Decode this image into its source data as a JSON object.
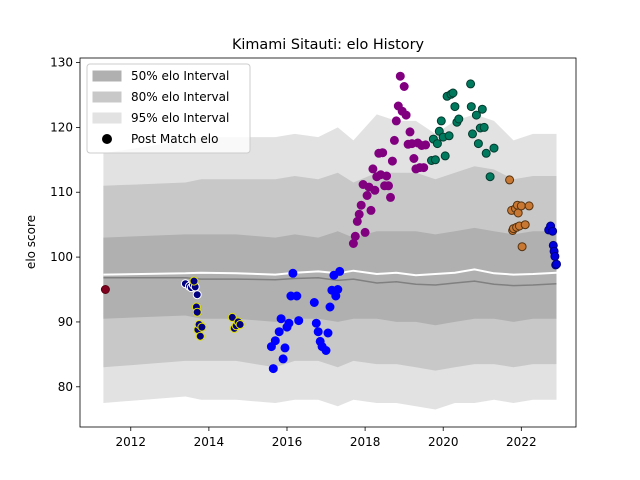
{
  "chart_data": {
    "type": "scatter",
    "title": "Kimami Sitauti: elo History",
    "xlabel": "",
    "ylabel": "elo score",
    "xlim": [
      2010.7,
      2023.4
    ],
    "ylim": [
      73.8,
      130.7
    ],
    "x_ticks": [
      2012,
      2014,
      2016,
      2018,
      2020,
      2022
    ],
    "y_ticks": [
      80,
      90,
      100,
      110,
      120,
      130
    ],
    "grid": false,
    "legend_position": "top-left",
    "legend": [
      {
        "label": "50% elo Interval",
        "kind": "band",
        "color": "#b0b0b0"
      },
      {
        "label": "80% elo Interval",
        "kind": "band",
        "color": "#c8c8c8"
      },
      {
        "label": "95% elo Interval",
        "kind": "band",
        "color": "#e2e2e2"
      },
      {
        "label": "Post Match elo",
        "kind": "marker",
        "color": "#000000"
      }
    ],
    "intervals": {
      "x": [
        2011.3,
        2013.4,
        2013.8,
        2014.7,
        2015.7,
        2016.2,
        2016.8,
        2017.3,
        2017.7,
        2018.3,
        2018.8,
        2019.3,
        2019.8,
        2020.3,
        2020.8,
        2021.3,
        2021.8,
        2022.3,
        2022.9
      ],
      "band95_upper": [
        116,
        118,
        118.5,
        118.5,
        118.5,
        119,
        118.5,
        120,
        118,
        122,
        121,
        121,
        119,
        121,
        122,
        121,
        118,
        119,
        119
      ],
      "band95_lower": [
        77.5,
        78.5,
        78,
        78,
        77.5,
        78,
        78,
        77,
        78,
        77.5,
        77.5,
        77,
        76.5,
        77.5,
        77.5,
        78,
        77.5,
        78,
        78
      ],
      "band80_upper": [
        111,
        111.5,
        112,
        112,
        112,
        112.5,
        112,
        113,
        111.5,
        113,
        113,
        113,
        112,
        113,
        114,
        113.5,
        112,
        112.5,
        112.5
      ],
      "band80_lower": [
        83,
        84,
        84,
        84,
        83,
        84,
        84,
        83,
        84,
        83.5,
        83.5,
        83,
        82.5,
        83,
        83.5,
        83.5,
        83,
        83.5,
        83.5
      ],
      "band50_upper": [
        103,
        103.5,
        103.5,
        103.5,
        103,
        103.5,
        103,
        104,
        103,
        104,
        104,
        104,
        103.5,
        104,
        104.5,
        104,
        103.5,
        104,
        104
      ],
      "band50_lower": [
        90.5,
        91,
        90.5,
        90.5,
        90,
        90.5,
        90.5,
        90,
        90.5,
        90.5,
        90,
        90,
        89.5,
        90,
        90.5,
        90.5,
        90,
        90.5,
        90.5
      ],
      "median": [
        96.8,
        96.8,
        96.6,
        96.6,
        96.5,
        96.7,
        96.8,
        96.4,
        96.6,
        96.0,
        96.2,
        95.8,
        95.7,
        96.0,
        96.3,
        95.8,
        95.6,
        95.7,
        95.9
      ],
      "mean": [
        97.3,
        97.5,
        97.6,
        97.5,
        97.3,
        97.6,
        97.8,
        97.5,
        97.9,
        97.4,
        97.6,
        97.2,
        97.4,
        97.6,
        98.1,
        97.5,
        97.3,
        97.4,
        97.6
      ]
    },
    "series": [
      {
        "color": "#800020",
        "edge": "#5a0010",
        "points": [
          [
            2011.35,
            95.0
          ]
        ]
      },
      {
        "color": "#000080",
        "edge": "#ffffff",
        "points": [
          [
            2013.4,
            95.9
          ],
          [
            2013.5,
            95.5
          ],
          [
            2013.55,
            95.3
          ],
          [
            2013.6,
            95.7
          ],
          [
            2013.65,
            95.4
          ],
          [
            2013.7,
            94.2
          ]
        ]
      },
      {
        "color": "#000080",
        "edge": "#e0e000",
        "points": [
          [
            2013.62,
            96.3
          ],
          [
            2013.68,
            92.3
          ],
          [
            2013.7,
            91.5
          ],
          [
            2013.72,
            88.8
          ],
          [
            2013.75,
            89.6
          ],
          [
            2013.78,
            87.8
          ],
          [
            2013.82,
            89.2
          ],
          [
            2014.6,
            90.7
          ],
          [
            2014.65,
            89.0
          ],
          [
            2014.7,
            89.4
          ],
          [
            2014.75,
            90.0
          ],
          [
            2014.8,
            89.6
          ]
        ]
      },
      {
        "color": "#0000ff",
        "edge": "#0000ff",
        "points": [
          [
            2015.6,
            86.2
          ],
          [
            2015.65,
            82.8
          ],
          [
            2015.7,
            87.1
          ],
          [
            2015.8,
            88.5
          ],
          [
            2015.85,
            90.5
          ],
          [
            2015.9,
            84.3
          ],
          [
            2015.95,
            86.0
          ],
          [
            2016.0,
            89.2
          ],
          [
            2016.05,
            89.8
          ],
          [
            2016.1,
            94.0
          ],
          [
            2016.15,
            97.5
          ],
          [
            2016.25,
            94.0
          ],
          [
            2016.3,
            90.2
          ],
          [
            2016.7,
            93.0
          ],
          [
            2016.75,
            89.8
          ],
          [
            2016.8,
            88.5
          ],
          [
            2016.85,
            87.0
          ],
          [
            2016.9,
            86.2
          ],
          [
            2017.0,
            85.6
          ],
          [
            2017.05,
            88.3
          ],
          [
            2017.1,
            92.3
          ],
          [
            2017.15,
            94.9
          ],
          [
            2017.2,
            97.2
          ],
          [
            2017.25,
            94.0
          ],
          [
            2017.3,
            95.0
          ],
          [
            2017.35,
            97.8
          ]
        ]
      },
      {
        "color": "#800080",
        "edge": "#800080",
        "points": [
          [
            2017.7,
            102.1
          ],
          [
            2017.75,
            103.2
          ],
          [
            2017.8,
            105.5
          ],
          [
            2017.85,
            106.6
          ],
          [
            2017.9,
            108.0
          ],
          [
            2017.95,
            111.2
          ],
          [
            2018.0,
            103.8
          ],
          [
            2018.05,
            109.5
          ],
          [
            2018.1,
            110.8
          ],
          [
            2018.15,
            107.2
          ],
          [
            2018.2,
            113.6
          ],
          [
            2018.25,
            110.3
          ],
          [
            2018.3,
            112.4
          ],
          [
            2018.35,
            116.0
          ],
          [
            2018.4,
            112.7
          ],
          [
            2018.45,
            116.1
          ],
          [
            2018.5,
            111.0
          ],
          [
            2018.55,
            112.5
          ],
          [
            2018.6,
            111.0
          ],
          [
            2018.65,
            109.2
          ],
          [
            2018.7,
            114.8
          ],
          [
            2018.75,
            118.0
          ],
          [
            2018.8,
            121.0
          ],
          [
            2018.85,
            123.3
          ],
          [
            2018.9,
            127.9
          ],
          [
            2018.95,
            122.5
          ],
          [
            2019.0,
            126.3
          ],
          [
            2019.05,
            121.9
          ],
          [
            2019.1,
            117.4
          ],
          [
            2019.15,
            119.3
          ],
          [
            2019.2,
            117.5
          ],
          [
            2019.25,
            115.2
          ],
          [
            2019.3,
            113.6
          ],
          [
            2019.35,
            117.6
          ],
          [
            2019.4,
            113.8
          ],
          [
            2019.45,
            117.2
          ],
          [
            2019.5,
            113.8
          ],
          [
            2019.55,
            117.3
          ]
        ]
      },
      {
        "color": "#007a5e",
        "edge": "#003a2d",
        "points": [
          [
            2019.7,
            114.9
          ],
          [
            2019.75,
            118.2
          ],
          [
            2019.8,
            115.0
          ],
          [
            2019.85,
            117.5
          ],
          [
            2019.9,
            119.4
          ],
          [
            2019.95,
            121.0
          ],
          [
            2020.0,
            118.5
          ],
          [
            2020.05,
            115.6
          ],
          [
            2020.1,
            124.8
          ],
          [
            2020.15,
            118.7
          ],
          [
            2020.2,
            125.1
          ],
          [
            2020.25,
            125.3
          ],
          [
            2020.3,
            123.2
          ],
          [
            2020.35,
            120.8
          ],
          [
            2020.4,
            121.3
          ],
          [
            2020.7,
            126.7
          ],
          [
            2020.72,
            123.2
          ],
          [
            2020.75,
            119.0
          ],
          [
            2020.85,
            121.9
          ],
          [
            2020.9,
            117.5
          ],
          [
            2020.95,
            119.9
          ],
          [
            2021.0,
            122.8
          ],
          [
            2021.05,
            120.0
          ],
          [
            2021.1,
            116.0
          ],
          [
            2021.2,
            112.4
          ],
          [
            2021.3,
            116.8
          ]
        ]
      },
      {
        "color": "#c87832",
        "edge": "#553311",
        "points": [
          [
            2021.7,
            111.9
          ],
          [
            2021.75,
            107.2
          ],
          [
            2021.78,
            104.1
          ],
          [
            2021.8,
            104.4
          ],
          [
            2021.85,
            107.5
          ],
          [
            2021.88,
            104.6
          ],
          [
            2021.9,
            108.0
          ],
          [
            2021.92,
            106.8
          ],
          [
            2021.95,
            104.8
          ],
          [
            2022.0,
            107.9
          ],
          [
            2022.02,
            101.6
          ],
          [
            2022.1,
            105.0
          ],
          [
            2022.2,
            107.9
          ]
        ]
      },
      {
        "color": "#0000dd",
        "edge": "#000080",
        "points": [
          [
            2022.7,
            104.2
          ],
          [
            2022.75,
            104.8
          ],
          [
            2022.8,
            104.0
          ],
          [
            2022.82,
            101.8
          ],
          [
            2022.84,
            100.9
          ],
          [
            2022.86,
            100.1
          ],
          [
            2022.88,
            98.8
          ],
          [
            2022.9,
            98.9
          ]
        ]
      }
    ]
  }
}
